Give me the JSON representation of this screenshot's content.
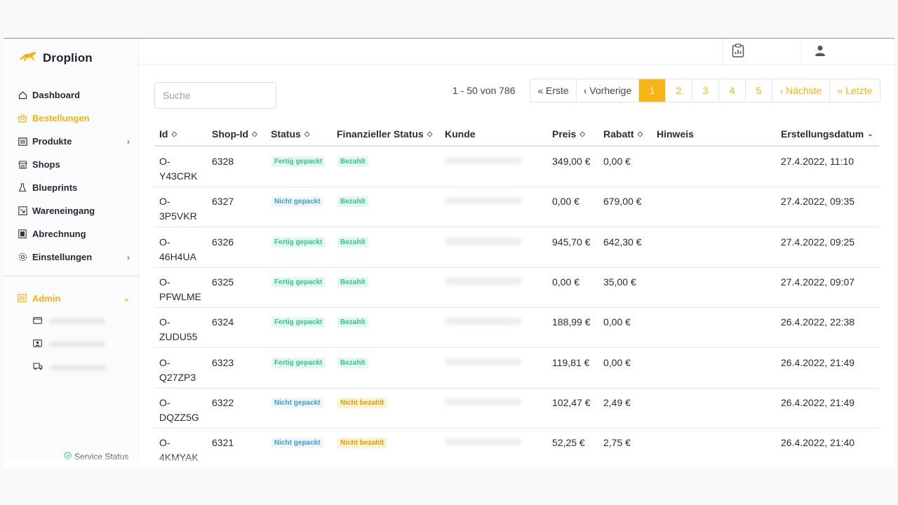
{
  "app": {
    "name": "Droplion"
  },
  "colors": {
    "accent": "#f5b20f",
    "paid": "#33c48d",
    "not_packed": "#3c9bd6",
    "unpaid": "#d99b0a"
  },
  "sidebar": {
    "items": [
      {
        "label": "Dashboard",
        "icon": "home-icon"
      },
      {
        "label": "Bestellungen",
        "icon": "basket-icon",
        "active": true
      },
      {
        "label": "Produkte",
        "icon": "list-icon",
        "has_children": true
      },
      {
        "label": "Shops",
        "icon": "store-icon"
      },
      {
        "label": "Blueprints",
        "icon": "flask-icon"
      },
      {
        "label": "Wareneingang",
        "icon": "inbox-icon"
      },
      {
        "label": "Abrechnung",
        "icon": "invoice-icon"
      },
      {
        "label": "Einstellungen",
        "icon": "gear-icon",
        "has_children": true
      }
    ],
    "admin": {
      "label": "Admin",
      "expanded": true
    },
    "service_status": "Service Status"
  },
  "search": {
    "placeholder": "Suche",
    "value": ""
  },
  "pagination": {
    "info": "1  - 50 von 786",
    "first": "« Erste",
    "prev": "‹ Vorherige",
    "pages": [
      "1",
      "2",
      "3",
      "4",
      "5"
    ],
    "current": "1",
    "next": "› Nächste",
    "last": "» Letzte"
  },
  "table": {
    "columns": [
      "Id",
      "Shop-Id",
      "Status",
      "Finanzieller Status",
      "Kunde",
      "Preis",
      "Rabatt",
      "Hinweis",
      "Erstellungsdatum"
    ],
    "rows": [
      {
        "id1": "O-",
        "id2": "Y43CRK",
        "shop": "6328",
        "status": "Fertig gepackt",
        "fin": "Bezahlt",
        "price": "349,00 €",
        "discount": "0,00 €",
        "date": "27.4.2022, 11:10"
      },
      {
        "id1": "O-",
        "id2": "3P5VKR",
        "shop": "6327",
        "status": "Nicht gepackt",
        "fin": "Bezahlt",
        "price": "0,00 €",
        "discount": "679,00 €",
        "date": "27.4.2022, 09:35"
      },
      {
        "id1": "O-",
        "id2": "46H4UA",
        "shop": "6326",
        "status": "Fertig gepackt",
        "fin": "Bezahlt",
        "price": "945,70 €",
        "discount": "642,30 €",
        "date": "27.4.2022, 09:25"
      },
      {
        "id1": "O-",
        "id2": "PFWLME",
        "shop": "6325",
        "status": "Fertig gepackt",
        "fin": "Bezahlt",
        "price": "0,00 €",
        "discount": "35,00 €",
        "date": "27.4.2022, 09:07"
      },
      {
        "id1": "O-",
        "id2": "ZUDU55",
        "shop": "6324",
        "status": "Fertig gepackt",
        "fin": "Bezahlt",
        "price": "188,99 €",
        "discount": "0,00 €",
        "date": "26.4.2022, 22:38"
      },
      {
        "id1": "O-",
        "id2": "Q27ZP3",
        "shop": "6323",
        "status": "Fertig gepackt",
        "fin": "Bezahlt",
        "price": "119,81 €",
        "discount": "0,00 €",
        "date": "26.4.2022, 21:49"
      },
      {
        "id1": "O-",
        "id2": "DQZZ5G",
        "shop": "6322",
        "status": "Nicht gepackt",
        "fin": "Nicht bezahlt",
        "price": "102,47 €",
        "discount": "2,49 €",
        "date": "26.4.2022, 21:49"
      },
      {
        "id1": "O-",
        "id2": "4KMYAK",
        "shop": "6321",
        "status": "Nicht gepackt",
        "fin": "Nicht bezahlt",
        "price": "52,25 €",
        "discount": "2,75 €",
        "date": "26.4.2022, 21:40"
      }
    ]
  }
}
